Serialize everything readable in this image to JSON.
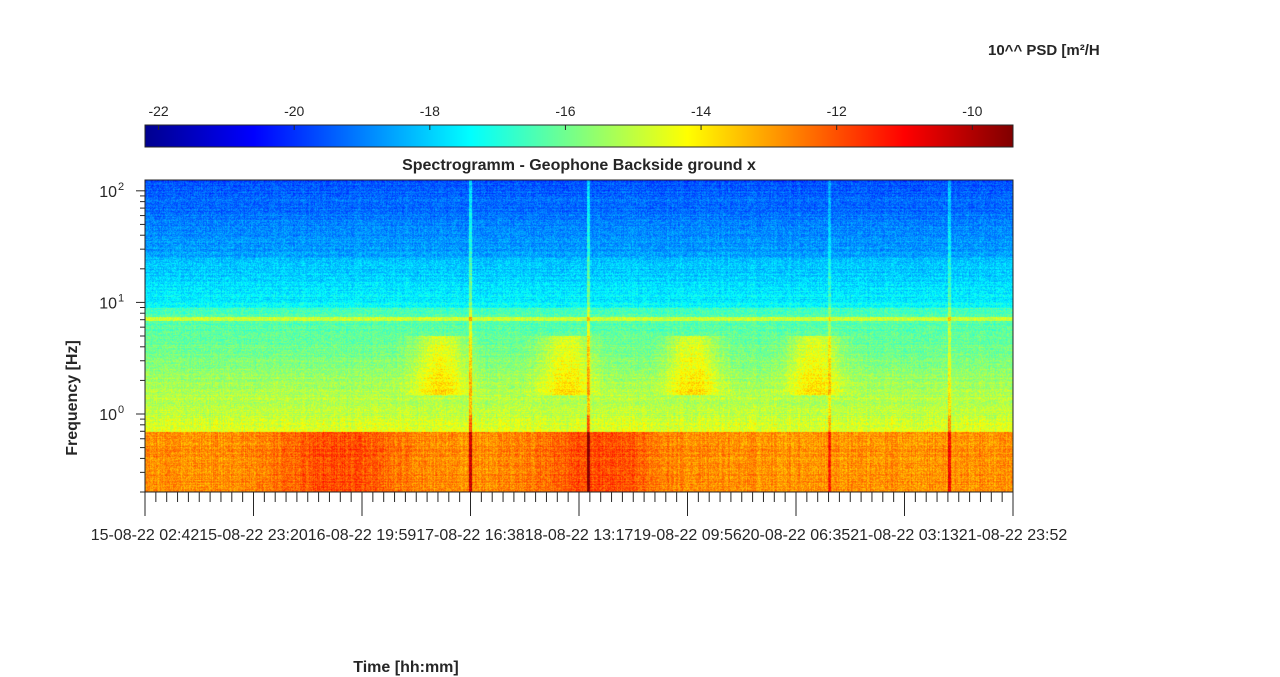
{
  "chart_data": {
    "type": "heatmap",
    "title": "Spectrogramm - Geophone Backside ground x",
    "xlabel": "Time [hh:mm]",
    "ylabel": "Frequency [Hz]",
    "colorbar_label": "10^^ PSD [m²/H",
    "colormap": "jet",
    "yscale": "log",
    "ylim": [
      0.2,
      125
    ],
    "clim": [
      -22.2,
      -9.4
    ],
    "colorbar_ticks": [
      -22,
      -20,
      -18,
      -16,
      -14,
      -12,
      -10
    ],
    "colorbar_tick_labels": [
      "-22",
      "-20",
      "-18",
      "-16",
      "-14",
      "-12",
      "-10"
    ],
    "y_ticks": [
      {
        "base": "10",
        "exp": "0",
        "value": 1
      },
      {
        "base": "10",
        "exp": "1",
        "value": 10
      },
      {
        "base": "10",
        "exp": "2",
        "value": 100
      }
    ],
    "x_tick_labels": [
      "15-08-22 02:42",
      "15-08-22 23:20",
      "16-08-22 19:59",
      "17-08-22 16:38",
      "18-08-22 13:17",
      "19-08-22 09:56",
      "20-08-22 06:35",
      "21-08-22 03:13",
      "21-08-22 23:52"
    ],
    "colorbar_position": "top",
    "grid": false
  }
}
